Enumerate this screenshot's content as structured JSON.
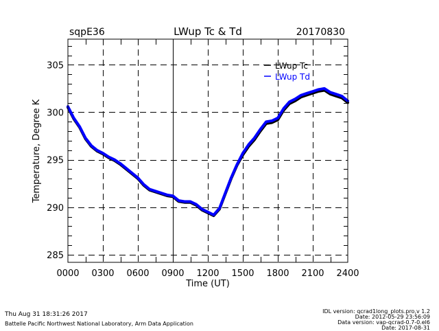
{
  "header": {
    "site": "sqpE36",
    "title": "LWup Tc & Td",
    "date": "20170830"
  },
  "footer": {
    "timestamp": "Thu Aug 31 18:31:26 2017",
    "organization": "Battelle Pacific Northwest National Laboratory, Arm Data Application",
    "idl_version": "IDL version: qcrad1long_plots.pro,v 1.2",
    "idl_date": "Date: 2012-05-29 23:56:09",
    "data_version": "Data version: vap-qcrad-0.7-0.el6",
    "data_date": "Date: 2017-08-31"
  },
  "chart_data": {
    "type": "line",
    "title": "LWup Tc & Td",
    "xlabel": "Time (UT)",
    "ylabel": "Temperature, Degree K",
    "xlim": [
      0,
      24
    ],
    "ylim": [
      284.2,
      307.7
    ],
    "x_ticks": [
      0,
      3,
      6,
      9,
      12,
      15,
      18,
      21,
      24
    ],
    "x_tick_labels": [
      "0000",
      "0300",
      "0600",
      "0900",
      "1200",
      "1500",
      "1800",
      "2100",
      "2400"
    ],
    "y_ticks": [
      285,
      290,
      295,
      300,
      305
    ],
    "y_tick_labels": [
      "285",
      "290",
      "295",
      "300",
      "305"
    ],
    "grid": true,
    "legend_position": "top-right",
    "x": [
      0,
      0.5,
      1,
      1.5,
      2,
      2.5,
      3,
      3.5,
      4,
      4.5,
      5,
      5.5,
      6,
      6.5,
      7,
      7.5,
      8,
      8.5,
      9,
      9.5,
      10,
      10.5,
      11,
      11.5,
      12,
      12.5,
      13,
      13.5,
      14,
      14.5,
      15,
      15.5,
      16,
      16.5,
      17,
      17.5,
      18,
      18.5,
      19,
      19.5,
      20,
      20.5,
      21,
      21.5,
      22,
      22.5,
      23,
      23.5,
      24
    ],
    "series": [
      {
        "name": "LWup Tc",
        "color": "#000000",
        "values": [
          300.6,
          299.4,
          298.5,
          297.3,
          296.5,
          296.0,
          295.7,
          295.3,
          295.0,
          294.6,
          294.1,
          293.6,
          293.1,
          292.4,
          291.9,
          291.7,
          291.5,
          291.3,
          291.2,
          290.7,
          290.6,
          290.6,
          290.3,
          289.8,
          289.5,
          289.2,
          289.9,
          291.5,
          293.1,
          294.5,
          295.6,
          296.5,
          297.2,
          298.1,
          298.9,
          299.0,
          299.3,
          300.3,
          301.0,
          301.3,
          301.7,
          301.9,
          302.1,
          302.3,
          302.4,
          302.0,
          301.8,
          301.6,
          301.1
        ]
      },
      {
        "name": "LWup Td",
        "color": "#0000ff",
        "values": [
          300.6,
          299.4,
          298.5,
          297.3,
          296.5,
          296.0,
          295.7,
          295.3,
          295.0,
          294.6,
          294.1,
          293.6,
          293.1,
          292.4,
          291.9,
          291.7,
          291.5,
          291.3,
          291.2,
          290.7,
          290.6,
          290.6,
          290.3,
          289.8,
          289.5,
          289.2,
          289.9,
          291.5,
          293.1,
          294.5,
          295.7,
          296.6,
          297.3,
          298.2,
          299.0,
          299.1,
          299.4,
          300.4,
          301.1,
          301.4,
          301.8,
          302.0,
          302.2,
          302.4,
          302.5,
          302.1,
          301.9,
          301.7,
          301.2
        ]
      }
    ]
  }
}
